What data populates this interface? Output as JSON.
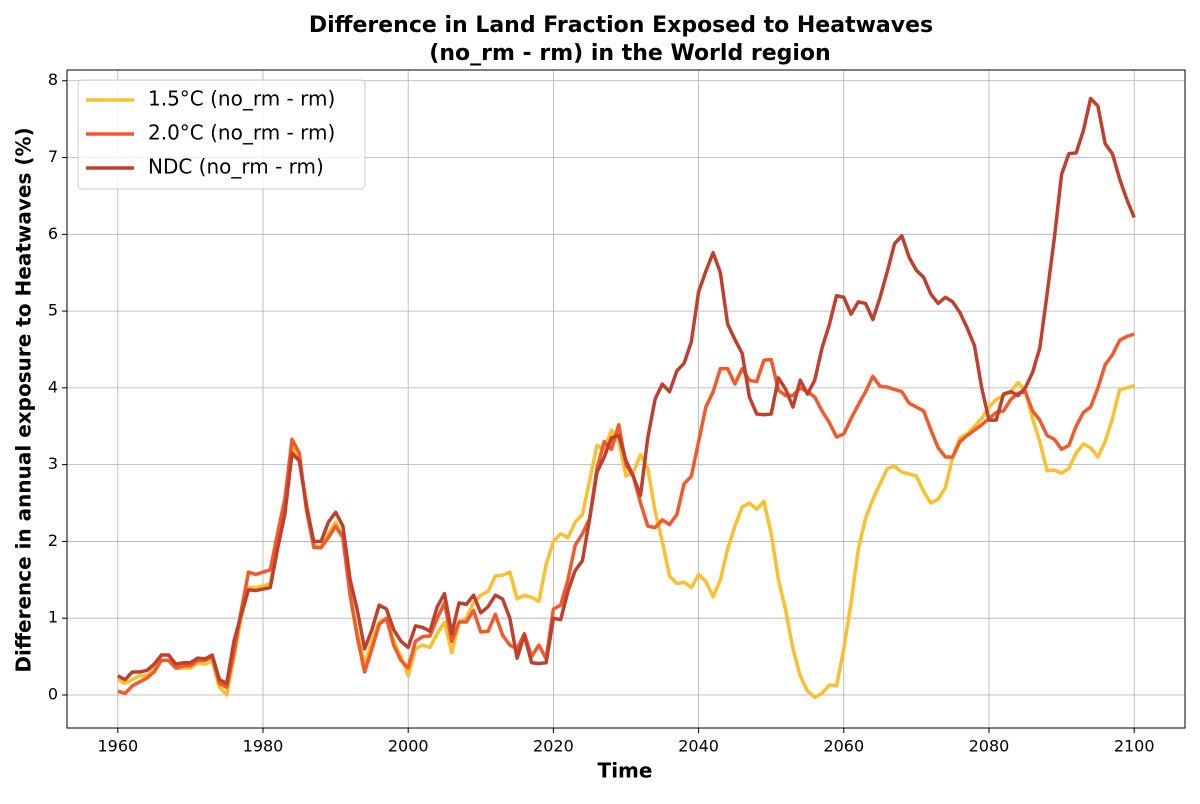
{
  "chart_data": {
    "type": "line",
    "title": [
      "Difference in Land Fraction Exposed to Heatwaves",
      "(no_rm - rm) in the World region"
    ],
    "xlabel": "Time",
    "ylabel": "Difference in annual exposure to Heatwaves (%)",
    "x": [
      1960,
      1961,
      1962,
      1963,
      1964,
      1965,
      1966,
      1967,
      1968,
      1969,
      1970,
      1971,
      1972,
      1973,
      1974,
      1975,
      1976,
      1977,
      1978,
      1979,
      1980,
      1981,
      1982,
      1983,
      1984,
      1985,
      1986,
      1987,
      1988,
      1989,
      1990,
      1991,
      1992,
      1993,
      1994,
      1995,
      1996,
      1997,
      1998,
      1999,
      2000,
      2001,
      2002,
      2003,
      2004,
      2005,
      2006,
      2007,
      2008,
      2009,
      2010,
      2011,
      2012,
      2013,
      2014,
      2015,
      2016,
      2017,
      2018,
      2019,
      2020,
      2021,
      2022,
      2023,
      2024,
      2025,
      2026,
      2027,
      2028,
      2029,
      2030,
      2031,
      2032,
      2033,
      2034,
      2035,
      2036,
      2037,
      2038,
      2039,
      2040,
      2041,
      2042,
      2043,
      2044,
      2045,
      2046,
      2047,
      2048,
      2049,
      2050,
      2051,
      2052,
      2053,
      2054,
      2055,
      2056,
      2057,
      2058,
      2059,
      2060,
      2061,
      2062,
      2063,
      2064,
      2065,
      2066,
      2067,
      2068,
      2069,
      2070,
      2071,
      2072,
      2073,
      2074,
      2075,
      2076,
      2077,
      2078,
      2079,
      2080,
      2081,
      2082,
      2083,
      2084,
      2085,
      2086,
      2087,
      2088,
      2089,
      2090,
      2091,
      2092,
      2093,
      2094,
      2095,
      2096,
      2097,
      2098,
      2099,
      2100
    ],
    "series": [
      {
        "name": "1.5°C (no_rm - rm)",
        "color": "#fbc02d",
        "values": [
          0.2,
          0.15,
          0.2,
          0.25,
          0.25,
          0.35,
          0.45,
          0.45,
          0.35,
          0.35,
          0.35,
          0.42,
          0.4,
          0.45,
          0.1,
          0.0,
          0.5,
          1.0,
          1.4,
          1.4,
          1.42,
          1.45,
          2.0,
          2.5,
          3.25,
          3.05,
          2.5,
          1.95,
          1.92,
          2.1,
          2.25,
          2.05,
          1.3,
          0.8,
          0.4,
          0.7,
          0.95,
          1.0,
          0.7,
          0.5,
          0.25,
          0.6,
          0.65,
          0.62,
          0.8,
          0.95,
          0.55,
          0.95,
          1.0,
          1.2,
          1.3,
          1.35,
          1.55,
          1.56,
          1.6,
          1.25,
          1.3,
          1.27,
          1.22,
          1.7,
          2.0,
          2.1,
          2.05,
          2.25,
          2.35,
          2.8,
          3.25,
          3.2,
          3.45,
          3.3,
          2.85,
          2.9,
          3.13,
          2.95,
          2.4,
          2.0,
          1.55,
          1.45,
          1.47,
          1.4,
          1.57,
          1.48,
          1.28,
          1.5,
          1.9,
          2.2,
          2.45,
          2.5,
          2.42,
          2.52,
          2.1,
          1.5,
          1.1,
          0.6,
          0.25,
          0.05,
          -0.03,
          0.02,
          0.13,
          0.12,
          0.6,
          1.2,
          1.9,
          2.3,
          2.55,
          2.75,
          2.95,
          2.98,
          2.9,
          2.88,
          2.85,
          2.65,
          2.5,
          2.55,
          2.7,
          3.1,
          3.35,
          3.4,
          3.5,
          3.6,
          3.75,
          3.85,
          3.9,
          3.95,
          4.07,
          3.97,
          3.6,
          3.3,
          2.92,
          2.93,
          2.89,
          2.95,
          3.15,
          3.27,
          3.22,
          3.1,
          3.3,
          3.6,
          3.98,
          4.0,
          4.03
        ]
      },
      {
        "name": "2.0°C (no_rm - rm)",
        "color": "#f4592a",
        "values": [
          0.05,
          0.02,
          0.12,
          0.17,
          0.22,
          0.3,
          0.45,
          0.45,
          0.35,
          0.38,
          0.38,
          0.45,
          0.45,
          0.5,
          0.15,
          0.1,
          0.55,
          1.1,
          1.6,
          1.57,
          1.6,
          1.63,
          2.1,
          2.55,
          3.33,
          3.15,
          2.4,
          1.92,
          1.92,
          2.05,
          2.2,
          2.05,
          1.3,
          0.75,
          0.3,
          0.6,
          0.92,
          1.0,
          0.65,
          0.45,
          0.35,
          0.7,
          0.76,
          0.77,
          1.0,
          1.2,
          0.7,
          0.95,
          0.95,
          1.1,
          0.82,
          0.83,
          1.05,
          0.78,
          0.65,
          0.6,
          0.8,
          0.5,
          0.65,
          0.47,
          1.12,
          1.17,
          1.5,
          1.95,
          2.1,
          2.3,
          2.95,
          3.3,
          3.2,
          3.52,
          3.0,
          2.85,
          2.5,
          2.2,
          2.18,
          2.28,
          2.22,
          2.35,
          2.75,
          2.85,
          3.3,
          3.75,
          3.95,
          4.25,
          4.25,
          4.05,
          4.25,
          4.1,
          4.08,
          4.36,
          4.37,
          3.97,
          3.9,
          3.9,
          4.0,
          3.95,
          3.88,
          3.7,
          3.55,
          3.36,
          3.4,
          3.6,
          3.78,
          3.95,
          4.15,
          4.02,
          4.01,
          3.98,
          3.95,
          3.8,
          3.75,
          3.7,
          3.45,
          3.22,
          3.1,
          3.1,
          3.3,
          3.38,
          3.45,
          3.52,
          3.6,
          3.68,
          3.7,
          3.85,
          3.93,
          3.95,
          3.7,
          3.58,
          3.38,
          3.33,
          3.2,
          3.25,
          3.5,
          3.68,
          3.75,
          4.0,
          4.3,
          4.43,
          4.62,
          4.67,
          4.7
        ]
      },
      {
        "name": "NDC (no_rm - rm)",
        "color": "#c0402e",
        "values": [
          0.25,
          0.2,
          0.3,
          0.3,
          0.32,
          0.4,
          0.52,
          0.52,
          0.4,
          0.42,
          0.42,
          0.48,
          0.47,
          0.52,
          0.2,
          0.15,
          0.7,
          1.05,
          1.37,
          1.36,
          1.38,
          1.4,
          1.9,
          2.35,
          3.15,
          3.05,
          2.45,
          2.0,
          2.0,
          2.25,
          2.38,
          2.2,
          1.5,
          1.1,
          0.6,
          0.85,
          1.17,
          1.12,
          0.85,
          0.7,
          0.62,
          0.9,
          0.88,
          0.83,
          1.15,
          1.32,
          0.8,
          1.2,
          1.18,
          1.3,
          1.07,
          1.15,
          1.3,
          1.25,
          1.0,
          0.48,
          0.78,
          0.42,
          0.41,
          0.42,
          1.0,
          0.98,
          1.35,
          1.62,
          1.75,
          2.3,
          2.9,
          3.1,
          3.35,
          3.38,
          3.05,
          2.85,
          2.6,
          3.35,
          3.85,
          4.05,
          3.95,
          4.22,
          4.32,
          4.6,
          5.25,
          5.52,
          5.76,
          5.5,
          4.83,
          4.63,
          4.45,
          3.88,
          3.66,
          3.65,
          3.66,
          4.13,
          3.98,
          3.75,
          4.1,
          3.92,
          4.1,
          4.52,
          4.82,
          5.2,
          5.18,
          4.96,
          5.12,
          5.1,
          4.89,
          5.18,
          5.52,
          5.88,
          5.98,
          5.7,
          5.53,
          5.44,
          5.22,
          5.1,
          5.18,
          5.12,
          4.98,
          4.78,
          4.55,
          4.0,
          3.58,
          3.58,
          3.92,
          3.95,
          3.9,
          4.0,
          4.2,
          4.52,
          5.22,
          5.95,
          6.78,
          7.05,
          7.06,
          7.35,
          7.77,
          7.67,
          7.18,
          7.05,
          6.72,
          6.45,
          6.22
        ]
      }
    ],
    "xlim": [
      1953,
      2107
    ],
    "xticks": [
      1960,
      1980,
      2000,
      2020,
      2040,
      2060,
      2080,
      2100
    ],
    "ylim": [
      -0.43,
      8.14
    ],
    "yticks": [
      0,
      1,
      2,
      3,
      4,
      5,
      6,
      7,
      8
    ],
    "grid": true,
    "legend": "upper left"
  }
}
